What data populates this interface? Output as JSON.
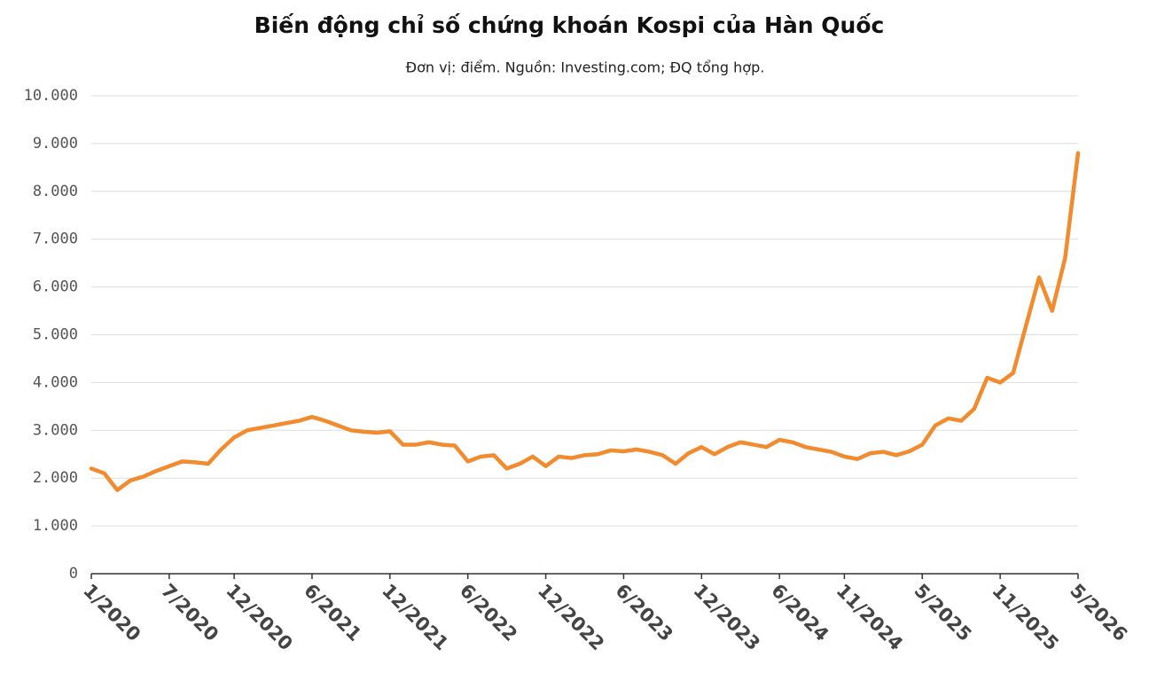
{
  "chart_data": {
    "type": "line",
    "title": "Biến động chỉ số chứng khoán Kospi của Hàn Quốc",
    "subtitle": "Đơn vị: điểm. Nguồn: Investing.com; ĐQ tổng hợp.",
    "categories": [
      "1/2020",
      null,
      null,
      null,
      null,
      null,
      "7/2020",
      null,
      null,
      null,
      null,
      "12/2020",
      null,
      null,
      null,
      null,
      null,
      "6/2021",
      null,
      null,
      null,
      null,
      null,
      "12/2021",
      null,
      null,
      null,
      null,
      null,
      "6/2022",
      null,
      null,
      null,
      null,
      null,
      "12/2022",
      null,
      null,
      null,
      null,
      null,
      "6/2023",
      null,
      null,
      null,
      null,
      null,
      "12/2023",
      null,
      null,
      null,
      null,
      null,
      "6/2024",
      null,
      null,
      null,
      null,
      "11/2024",
      null,
      null,
      null,
      null,
      null,
      "5/2025",
      null,
      null,
      null,
      null,
      null,
      "11/2025",
      null,
      null,
      null,
      null,
      null,
      "5/2026"
    ],
    "series": [
      {
        "name": "Kospi",
        "color": "#f28a2e",
        "values": [
          2200,
          2100,
          1750,
          1950,
          2030,
          2150,
          2250,
          2350,
          2330,
          2300,
          2600,
          2850,
          3000,
          3050,
          3100,
          3150,
          3200,
          3280,
          3200,
          3100,
          3000,
          2970,
          2950,
          2980,
          2700,
          2700,
          2750,
          2700,
          2680,
          2350,
          2450,
          2480,
          2200,
          2300,
          2450,
          2250,
          2450,
          2420,
          2480,
          2500,
          2580,
          2560,
          2600,
          2550,
          2480,
          2300,
          2520,
          2650,
          2500,
          2650,
          2750,
          2700,
          2650,
          2800,
          2750,
          2650,
          2600,
          2550,
          2450,
          2400,
          2520,
          2550,
          2480,
          2560,
          2700,
          3100,
          3250,
          3200,
          3450,
          4100,
          4000,
          4200,
          5200,
          6200,
          5500,
          6600,
          8800
        ]
      }
    ],
    "ylim": [
      0,
      10000
    ],
    "yticks": [
      0,
      {
        "value": 1000,
        "label": "1.000"
      },
      {
        "value": 2000,
        "label": "2.000"
      },
      {
        "value": 3000,
        "label": "3.000"
      },
      {
        "value": 4000,
        "label": "4.000"
      },
      {
        "value": 5000,
        "label": "5.000"
      },
      {
        "value": 6000,
        "label": "6.000"
      },
      {
        "value": 7000,
        "label": "7.000"
      },
      {
        "value": 8000,
        "label": "8.000"
      },
      {
        "value": 9000,
        "label": "9.000"
      },
      {
        "value": 10000,
        "label": "10.000"
      }
    ],
    "grid": true
  }
}
